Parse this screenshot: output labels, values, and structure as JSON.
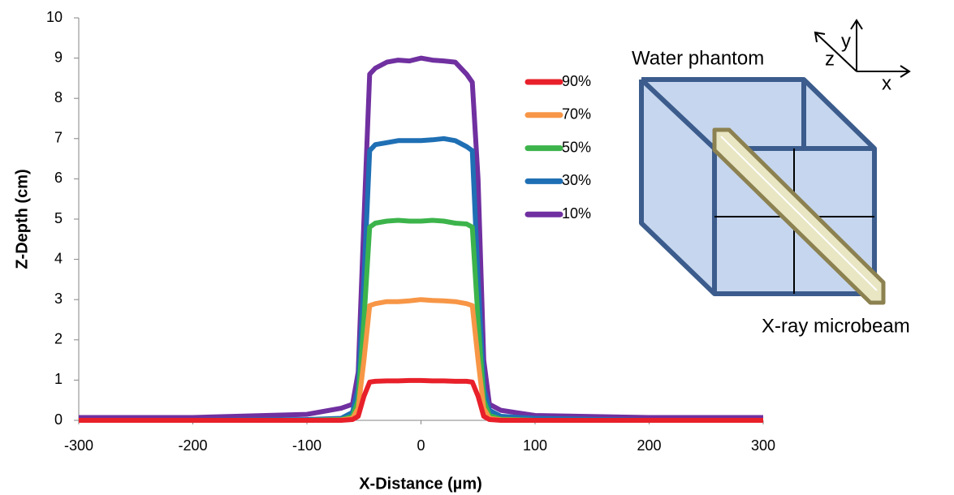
{
  "chart_data": {
    "type": "line",
    "x_label": "X-Distance (µm)",
    "y_label": "Z-Depth (cm)",
    "x": [
      -300,
      -200,
      -100,
      -70,
      -60,
      -55,
      -50,
      -45,
      -40,
      -30,
      -20,
      -10,
      0,
      10,
      20,
      30,
      40,
      45,
      50,
      55,
      60,
      70,
      100,
      200,
      300
    ],
    "series": [
      {
        "name": "90%",
        "color": "#e8202a",
        "values": [
          0,
          0,
          0,
          0,
          0.02,
          0.1,
          0.6,
          0.95,
          0.97,
          0.98,
          0.98,
          0.99,
          0.99,
          0.98,
          0.98,
          0.97,
          0.97,
          0.95,
          0.6,
          0.1,
          0.02,
          0,
          0,
          0,
          0
        ]
      },
      {
        "name": "70%",
        "color": "#f79646",
        "values": [
          0,
          0,
          0,
          0.01,
          0.05,
          0.3,
          1.5,
          2.85,
          2.9,
          2.95,
          2.95,
          2.97,
          3.0,
          2.98,
          2.97,
          2.95,
          2.9,
          2.85,
          1.5,
          0.3,
          0.05,
          0.01,
          0,
          0,
          0
        ]
      },
      {
        "name": "50%",
        "color": "#3cb44b",
        "values": [
          0,
          0,
          0,
          0.02,
          0.1,
          0.5,
          2.5,
          4.8,
          4.9,
          4.95,
          4.97,
          4.95,
          4.95,
          4.97,
          4.95,
          4.9,
          4.88,
          4.8,
          2.5,
          0.5,
          0.12,
          0.03,
          0,
          0,
          0
        ]
      },
      {
        "name": "30%",
        "color": "#1f6fb4",
        "values": [
          0,
          0,
          0.02,
          0.05,
          0.2,
          0.8,
          3.5,
          6.7,
          6.85,
          6.9,
          6.95,
          6.95,
          6.95,
          6.97,
          7.0,
          6.95,
          6.8,
          6.7,
          3.5,
          0.8,
          0.25,
          0.1,
          0.05,
          0,
          0
        ]
      },
      {
        "name": "10%",
        "color": "#7030a0",
        "values": [
          0.07,
          0.07,
          0.15,
          0.3,
          0.4,
          1.2,
          5,
          8.6,
          8.75,
          8.9,
          8.95,
          8.93,
          9.0,
          8.95,
          8.93,
          8.9,
          8.6,
          8.4,
          6,
          1.5,
          0.4,
          0.25,
          0.12,
          0.07,
          0.07
        ]
      }
    ],
    "xlim": [
      -300,
      300
    ],
    "xticks": [
      -300,
      -200,
      -100,
      0,
      100,
      200,
      300
    ],
    "ylim": [
      0,
      10
    ],
    "yticks": [
      0,
      1,
      2,
      3,
      4,
      5,
      6,
      7,
      8,
      9,
      10
    ],
    "annotations": [
      "Water phantom",
      "X-ray microbeam",
      "x",
      "y",
      "z"
    ]
  }
}
